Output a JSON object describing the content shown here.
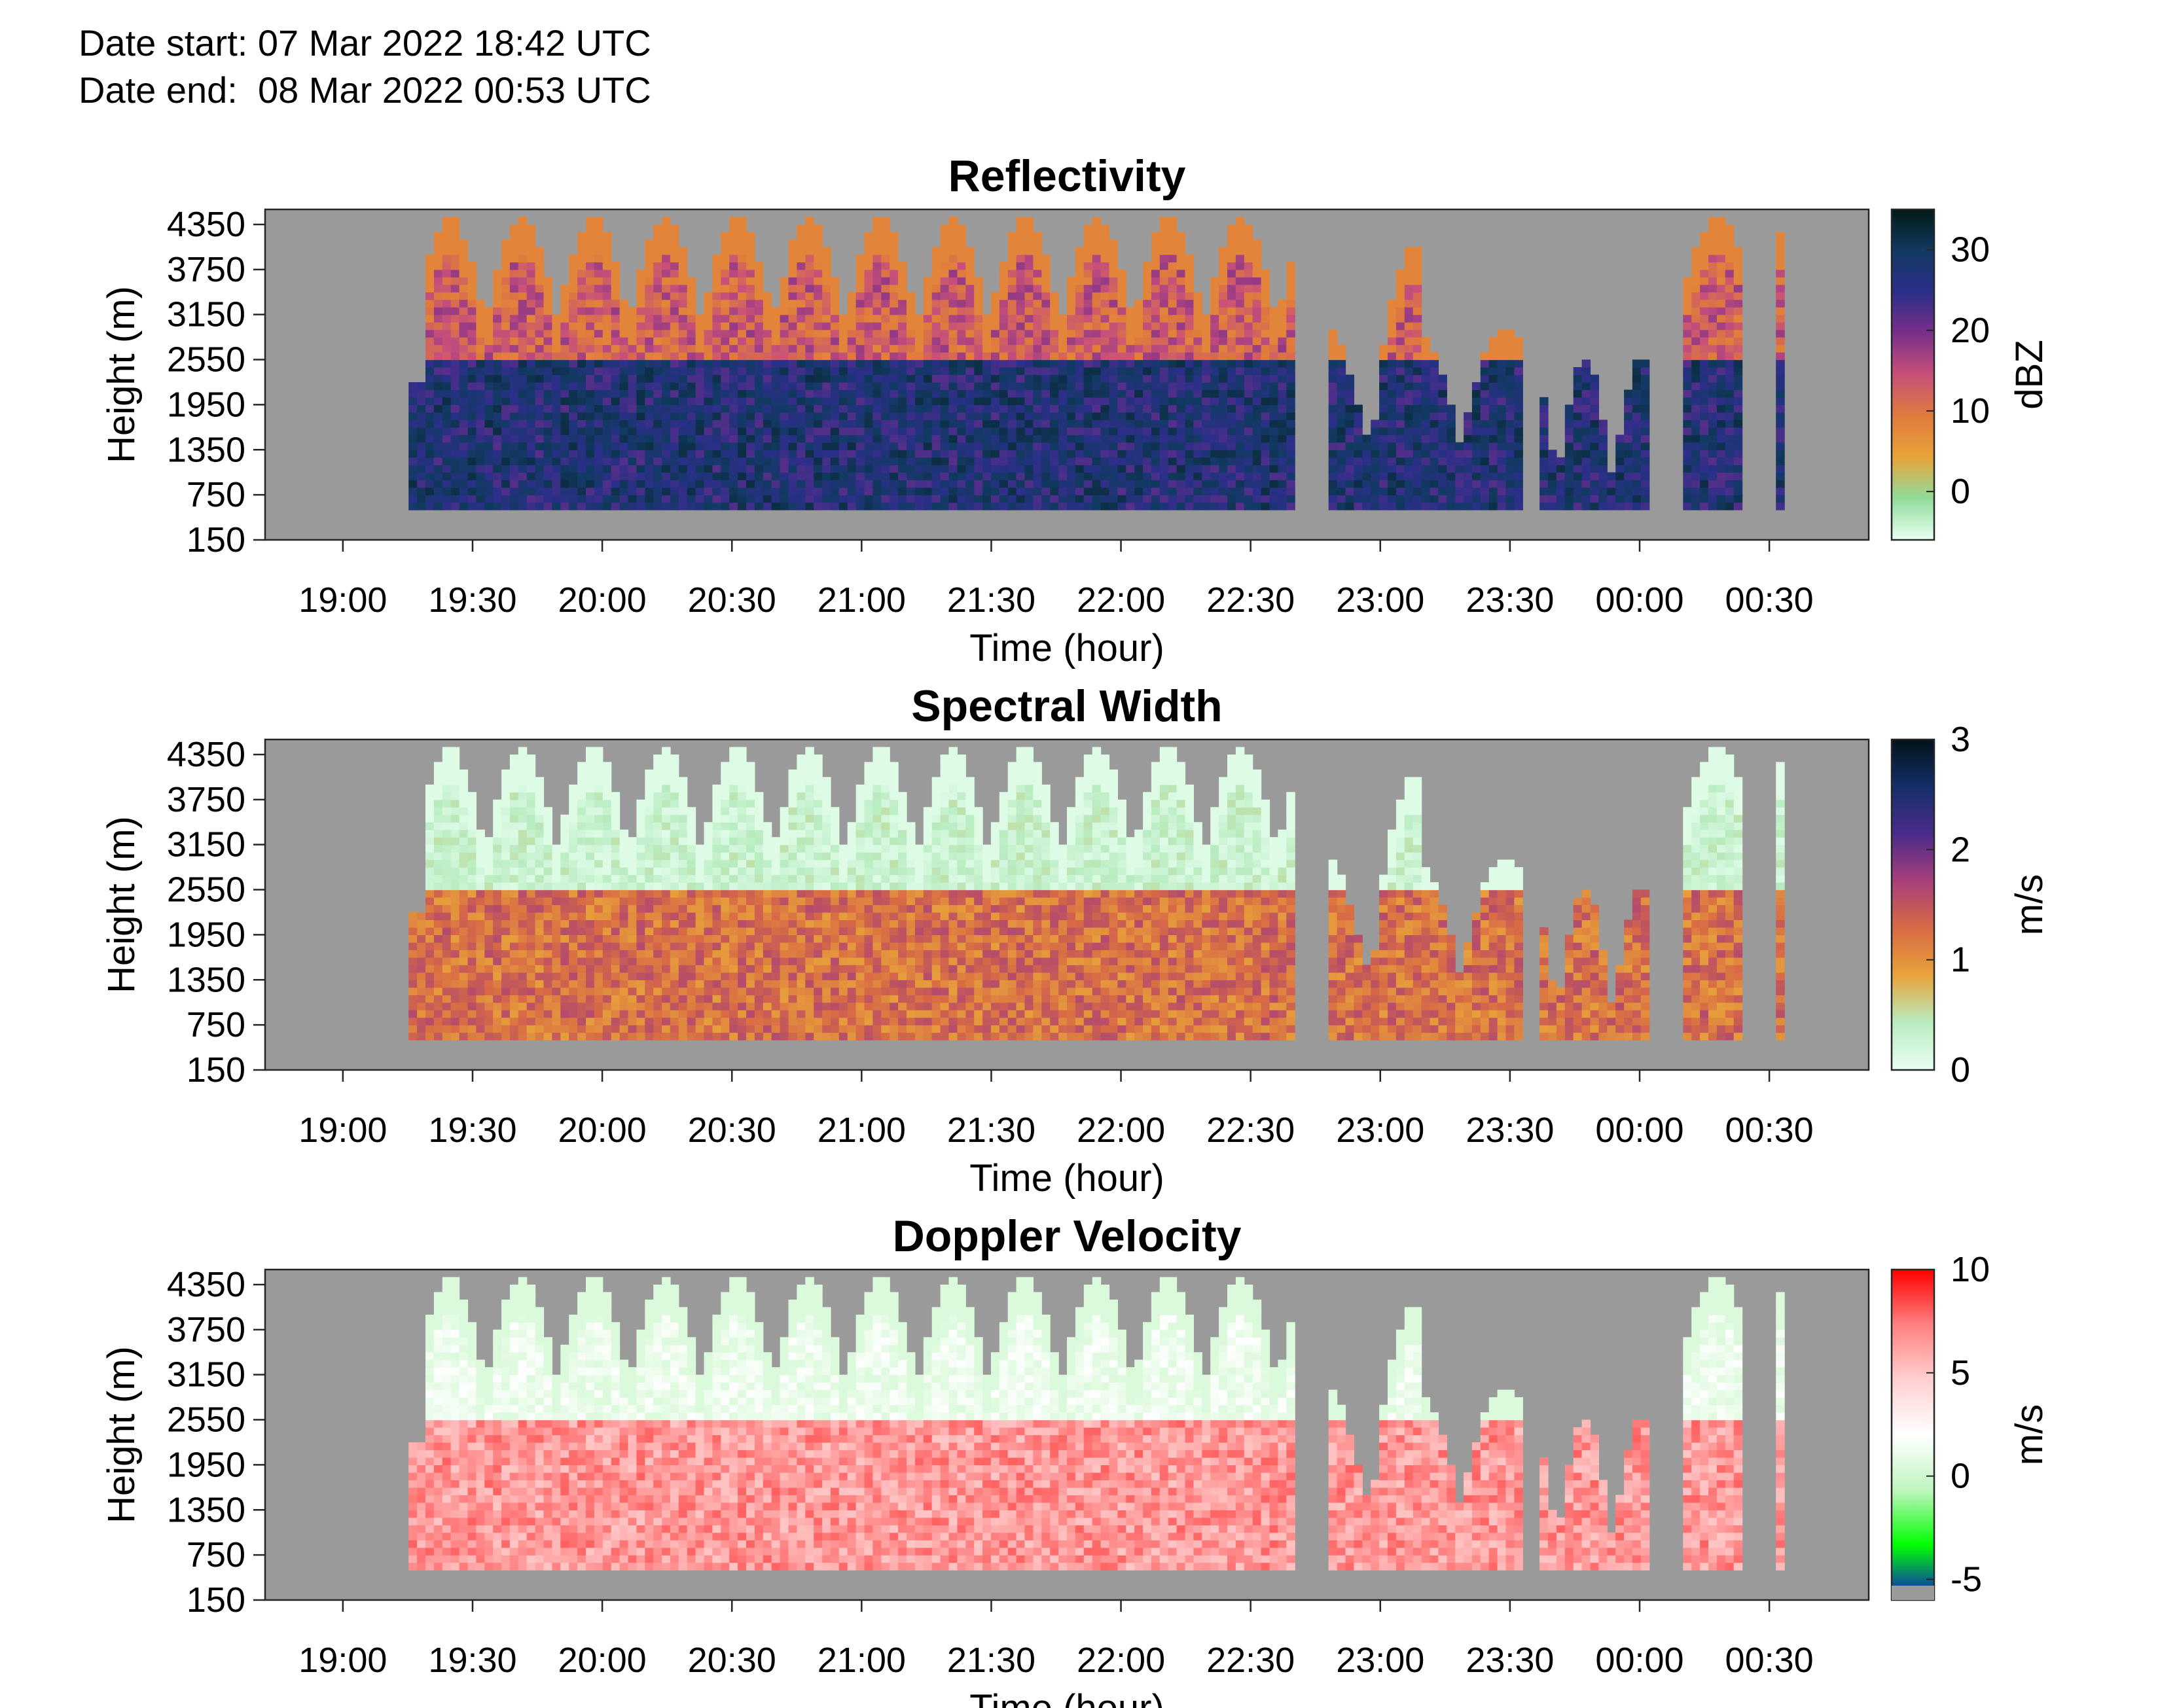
{
  "header": {
    "date_start": "Date start: 07 Mar 2022 18:42 UTC",
    "date_end": "Date end:  08 Mar 2022 00:53 UTC"
  },
  "colors": {
    "background": "#9a9a9a",
    "cmap_reflectivity": [
      "#e9fff2",
      "#8fdc9a",
      "#e8a33a",
      "#e07a3c",
      "#c8507a",
      "#7a2f8a",
      "#2b2f88",
      "#123a63",
      "#031a16"
    ],
    "cmap_width": [
      "#e9fff2",
      "#b8ecc0",
      "#e8a33a",
      "#d86a45",
      "#a8407a",
      "#4b2b8a",
      "#142f6a",
      "#03121a"
    ],
    "cmap_velocity": [
      "#1010d0",
      "#00ff00",
      "#bff5bf",
      "#ffffff",
      "#ffd0d0",
      "#ff8080",
      "#ff0000"
    ]
  },
  "chart_data": [
    {
      "type": "heatmap",
      "title": "Reflectivity",
      "xlabel": "Time (hour)",
      "ylabel": "Height (m)",
      "colorbar_label": "dBZ",
      "colorbar_ticks": [
        0,
        10,
        20,
        30
      ],
      "clim": [
        -6,
        35
      ],
      "x_ticks": [
        "19:00",
        "19:30",
        "20:00",
        "20:30",
        "21:00",
        "21:30",
        "22:00",
        "22:30",
        "23:00",
        "23:30",
        "00:00",
        "00:30"
      ],
      "y_ticks": [
        "150",
        "750",
        "1350",
        "1950",
        "2550",
        "3150",
        "3750",
        "4350"
      ],
      "xlim": [
        "18:42",
        "00:53"
      ],
      "ylim": [
        150,
        4550
      ],
      "layers": {
        "below": [
          22,
          32
        ],
        "above": [
          8,
          18
        ]
      }
    },
    {
      "type": "heatmap",
      "title": "Spectral Width",
      "xlabel": "Time (hour)",
      "ylabel": "Height (m)",
      "colorbar_label": "m/s",
      "colorbar_ticks": [
        0,
        1,
        2,
        3
      ],
      "clim": [
        0,
        3
      ],
      "x_ticks": [
        "19:00",
        "19:30",
        "20:00",
        "20:30",
        "21:00",
        "21:30",
        "22:00",
        "22:30",
        "23:00",
        "23:30",
        "00:00",
        "00:30"
      ],
      "y_ticks": [
        "150",
        "750",
        "1350",
        "1950",
        "2550",
        "3150",
        "3750",
        "4350"
      ],
      "xlim": [
        "18:42",
        "00:53"
      ],
      "ylim": [
        150,
        4550
      ],
      "layers": {
        "below": [
          0.9,
          1.6
        ],
        "above": [
          0.1,
          0.5
        ]
      }
    },
    {
      "type": "heatmap",
      "title": "Doppler Velocity",
      "xlabel": "Time (hour)",
      "ylabel": "Height (m)",
      "colorbar_label": "m/s",
      "colorbar_ticks": [
        -5,
        0,
        5,
        10
      ],
      "clim": [
        -6,
        10
      ],
      "x_ticks": [
        "19:00",
        "19:30",
        "20:00",
        "20:30",
        "21:00",
        "21:30",
        "22:00",
        "22:30",
        "23:00",
        "23:30",
        "00:00",
        "00:30"
      ],
      "y_ticks": [
        "150",
        "750",
        "1350",
        "1950",
        "2550",
        "3150",
        "3750",
        "4350"
      ],
      "xlim": [
        "18:42",
        "00:53"
      ],
      "ylim": [
        150,
        4550
      ],
      "layers": {
        "below": [
          5,
          8
        ],
        "above": [
          0.5,
          2
        ]
      }
    }
  ]
}
